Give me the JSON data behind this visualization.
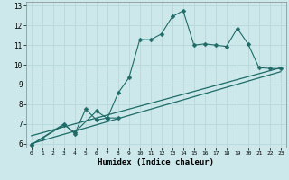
{
  "xlabel": "Humidex (Indice chaleur)",
  "bg_color": "#cce8ea",
  "grid_color": "#b8d8db",
  "line_color": "#1e6b68",
  "xlim": [
    -0.5,
    23.5
  ],
  "ylim": [
    5.8,
    13.2
  ],
  "xticks": [
    0,
    1,
    2,
    3,
    4,
    5,
    6,
    7,
    8,
    9,
    10,
    11,
    12,
    13,
    14,
    15,
    16,
    17,
    18,
    19,
    20,
    21,
    22,
    23
  ],
  "yticks": [
    6,
    7,
    8,
    9,
    10,
    11,
    12,
    13
  ],
  "line1_x": [
    0,
    1,
    3,
    4,
    6,
    7,
    8,
    9,
    10,
    11,
    12,
    13,
    14,
    15,
    16,
    17,
    18,
    19,
    20,
    21,
    22,
    23
  ],
  "line1_y": [
    5.95,
    6.27,
    6.95,
    6.57,
    7.65,
    7.28,
    8.57,
    9.35,
    11.28,
    11.27,
    11.57,
    12.45,
    12.75,
    11.0,
    11.06,
    11.0,
    10.93,
    11.85,
    11.05,
    9.85,
    9.82,
    9.8
  ],
  "line2_x": [
    0,
    3,
    4,
    5,
    6,
    7,
    8
  ],
  "line2_y": [
    5.95,
    7.0,
    6.5,
    7.75,
    7.2,
    7.3,
    7.3
  ],
  "line3_x": [
    0,
    23
  ],
  "line3_y": [
    6.4,
    9.85
  ],
  "line4_x": [
    0,
    23
  ],
  "line4_y": [
    6.0,
    9.65
  ],
  "markersize": 2.5
}
